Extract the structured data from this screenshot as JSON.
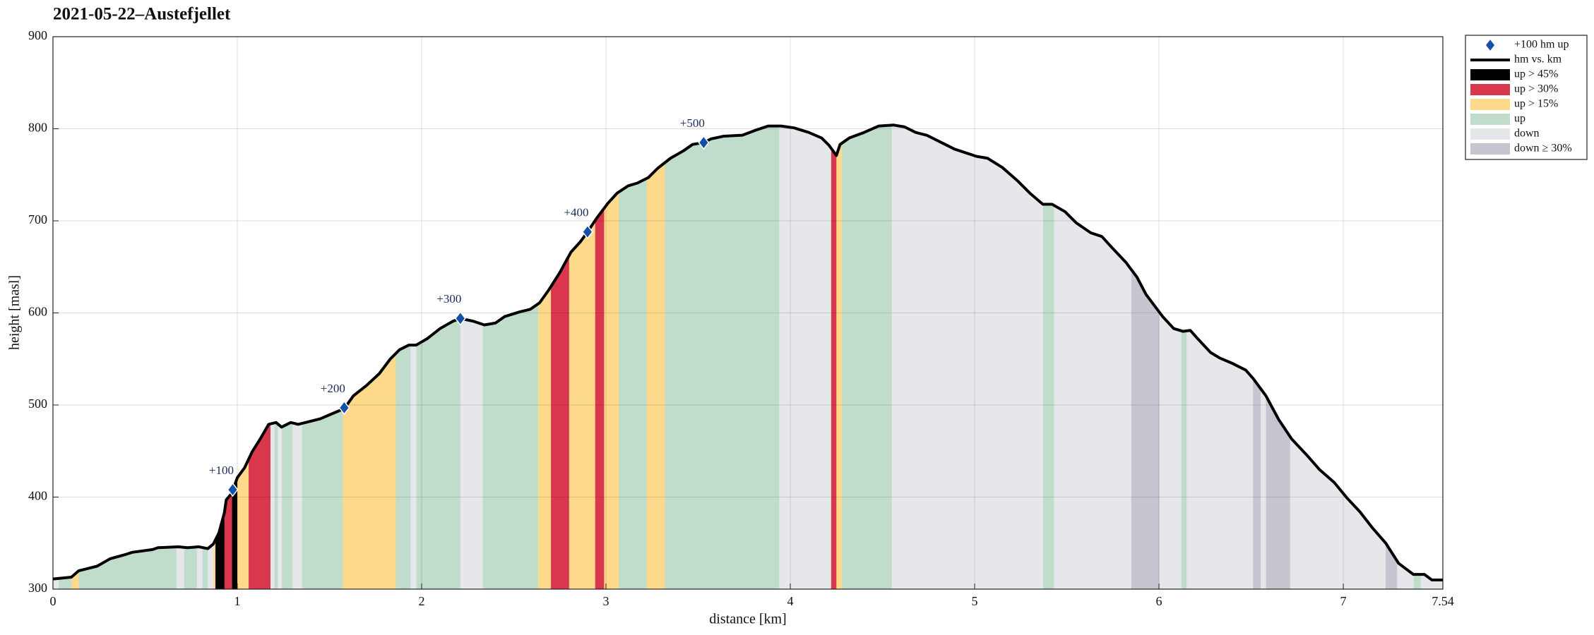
{
  "chart_data": {
    "type": "area",
    "title": "2021-05-22–Austefjellet",
    "xlabel": "distance [km]",
    "ylabel": "height [masl]",
    "xlim": [
      0,
      7.54
    ],
    "ylim": [
      300,
      900
    ],
    "xticks": [
      0,
      1,
      2,
      3,
      4,
      5,
      6,
      7,
      7.54
    ],
    "yticks": [
      300,
      400,
      500,
      600,
      700,
      800,
      900
    ],
    "grid": true,
    "x": [
      0,
      0.1,
      0.14,
      0.24,
      0.31,
      0.4,
      0.43,
      0.54,
      0.57,
      0.68,
      0.73,
      0.79,
      0.84,
      0.87,
      0.9,
      0.93,
      0.94,
      0.97,
      1.0,
      1.04,
      1.08,
      1.13,
      1.17,
      1.21,
      1.24,
      1.29,
      1.33,
      1.37,
      1.45,
      1.52,
      1.58,
      1.63,
      1.7,
      1.77,
      1.83,
      1.88,
      1.93,
      1.97,
      2.03,
      2.1,
      2.17,
      2.21,
      2.28,
      2.34,
      2.4,
      2.45,
      2.53,
      2.59,
      2.64,
      2.69,
      2.75,
      2.81,
      2.86,
      2.9,
      2.95,
      3.01,
      3.06,
      3.12,
      3.17,
      3.23,
      3.28,
      3.35,
      3.42,
      3.47,
      3.53,
      3.57,
      3.64,
      3.74,
      3.82,
      3.88,
      3.95,
      4.02,
      4.1,
      4.17,
      4.21,
      4.25,
      4.27,
      4.32,
      4.4,
      4.48,
      4.56,
      4.62,
      4.68,
      4.74,
      4.82,
      4.89,
      4.95,
      5.01,
      5.07,
      5.15,
      5.23,
      5.3,
      5.37,
      5.42,
      5.49,
      5.55,
      5.63,
      5.69,
      5.74,
      5.82,
      5.88,
      5.93,
      6.02,
      6.08,
      6.13,
      6.17,
      6.21,
      6.28,
      6.33,
      6.4,
      6.47,
      6.51,
      6.58,
      6.65,
      6.72,
      6.8,
      6.87,
      6.95,
      7.02,
      7.09,
      7.16,
      7.23,
      7.3,
      7.38,
      7.44,
      7.48,
      7.54
    ],
    "series": [
      {
        "name": "hm vs. km",
        "color": "#000000",
        "values": [
          311,
          313,
          320,
          325,
          333,
          338,
          340,
          343,
          345,
          346,
          345,
          346,
          344,
          349,
          361,
          383,
          397,
          404,
          421,
          432,
          449,
          465,
          479,
          481,
          476,
          481,
          479,
          481,
          485,
          491,
          496,
          510,
          521,
          534,
          550,
          560,
          565,
          565,
          572,
          583,
          591,
          594,
          591,
          587,
          589,
          596,
          601,
          604,
          611,
          625,
          644,
          666,
          677,
          688,
          703,
          719,
          730,
          738,
          741,
          747,
          757,
          768,
          776,
          783,
          785,
          789,
          792,
          793,
          799,
          803,
          803,
          801,
          796,
          790,
          782,
          771,
          783,
          790,
          796,
          803,
          804,
          802,
          796,
          793,
          785,
          778,
          774,
          770,
          768,
          758,
          744,
          730,
          718,
          718,
          710,
          698,
          687,
          683,
          672,
          655,
          639,
          620,
          596,
          583,
          580,
          581,
          572,
          557,
          551,
          545,
          538,
          529,
          510,
          484,
          463,
          446,
          430,
          416,
          399,
          384,
          366,
          350,
          328,
          316,
          316,
          310,
          310
        ]
      }
    ],
    "markers": {
      "name": "+100 hm up",
      "color": "#1450a8",
      "x": [
        0.975,
        1.58,
        2.21,
        2.9,
        3.53
      ],
      "values": [
        408,
        497,
        594,
        688,
        785
      ],
      "labels": [
        "+100",
        "+200",
        "+300",
        "+400",
        "+500"
      ]
    },
    "classes": [
      {
        "name": "up > 45%",
        "color": "#000000",
        "spans": [
          [
            0.88,
            0.93
          ],
          [
            0.97,
            1.0
          ]
        ]
      },
      {
        "name": "up > 30%",
        "color": "#d9374d",
        "spans": [
          [
            0.93,
            0.97
          ],
          [
            1.06,
            1.18
          ],
          [
            2.7,
            2.8
          ],
          [
            2.94,
            2.99
          ],
          [
            4.22,
            4.25
          ]
        ]
      },
      {
        "name": "up > 15%",
        "color": "#fdd98b",
        "spans": [
          [
            0.1,
            0.14
          ],
          [
            0.87,
            0.88
          ],
          [
            1.0,
            1.06
          ],
          [
            1.57,
            1.86
          ],
          [
            2.63,
            2.7
          ],
          [
            2.8,
            2.94
          ],
          [
            2.99,
            3.07
          ],
          [
            3.22,
            3.32
          ],
          [
            4.25,
            4.28
          ]
        ]
      },
      {
        "name": "up",
        "color": "#c0dccb",
        "spans": [
          [
            0.03,
            0.1
          ],
          [
            0.14,
            0.67
          ],
          [
            0.71,
            0.78
          ],
          [
            0.81,
            0.84
          ],
          [
            1.2,
            1.22
          ],
          [
            1.24,
            1.3
          ],
          [
            1.35,
            1.57
          ],
          [
            1.86,
            1.94
          ],
          [
            1.97,
            2.21
          ],
          [
            2.33,
            2.63
          ],
          [
            3.07,
            3.22
          ],
          [
            3.32,
            3.94
          ],
          [
            4.28,
            4.55
          ],
          [
            5.37,
            5.43
          ],
          [
            6.12,
            6.15
          ],
          [
            7.38,
            7.42
          ]
        ]
      },
      {
        "name": "down",
        "color": "#e6e7ea",
        "spans": [
          [
            0,
            0.03
          ],
          [
            0.67,
            0.71
          ],
          [
            0.78,
            0.81
          ],
          [
            0.84,
            0.87
          ],
          [
            1.18,
            1.2
          ],
          [
            1.22,
            1.24
          ],
          [
            1.3,
            1.35
          ],
          [
            1.94,
            1.97
          ],
          [
            2.21,
            2.33
          ],
          [
            3.94,
            4.22
          ],
          [
            4.55,
            5.37
          ],
          [
            5.43,
            5.85
          ],
          [
            6.0,
            6.12
          ],
          [
            6.15,
            6.51
          ],
          [
            6.55,
            6.58
          ],
          [
            6.71,
            7.23
          ],
          [
            7.29,
            7.38
          ],
          [
            7.42,
            7.54
          ]
        ]
      },
      {
        "name": "down ≥ 30%",
        "color": "#c5c6d0",
        "spans": [
          [
            5.85,
            6.0
          ],
          [
            6.51,
            6.55
          ],
          [
            6.58,
            6.71
          ],
          [
            7.23,
            7.29
          ]
        ]
      }
    ]
  }
}
